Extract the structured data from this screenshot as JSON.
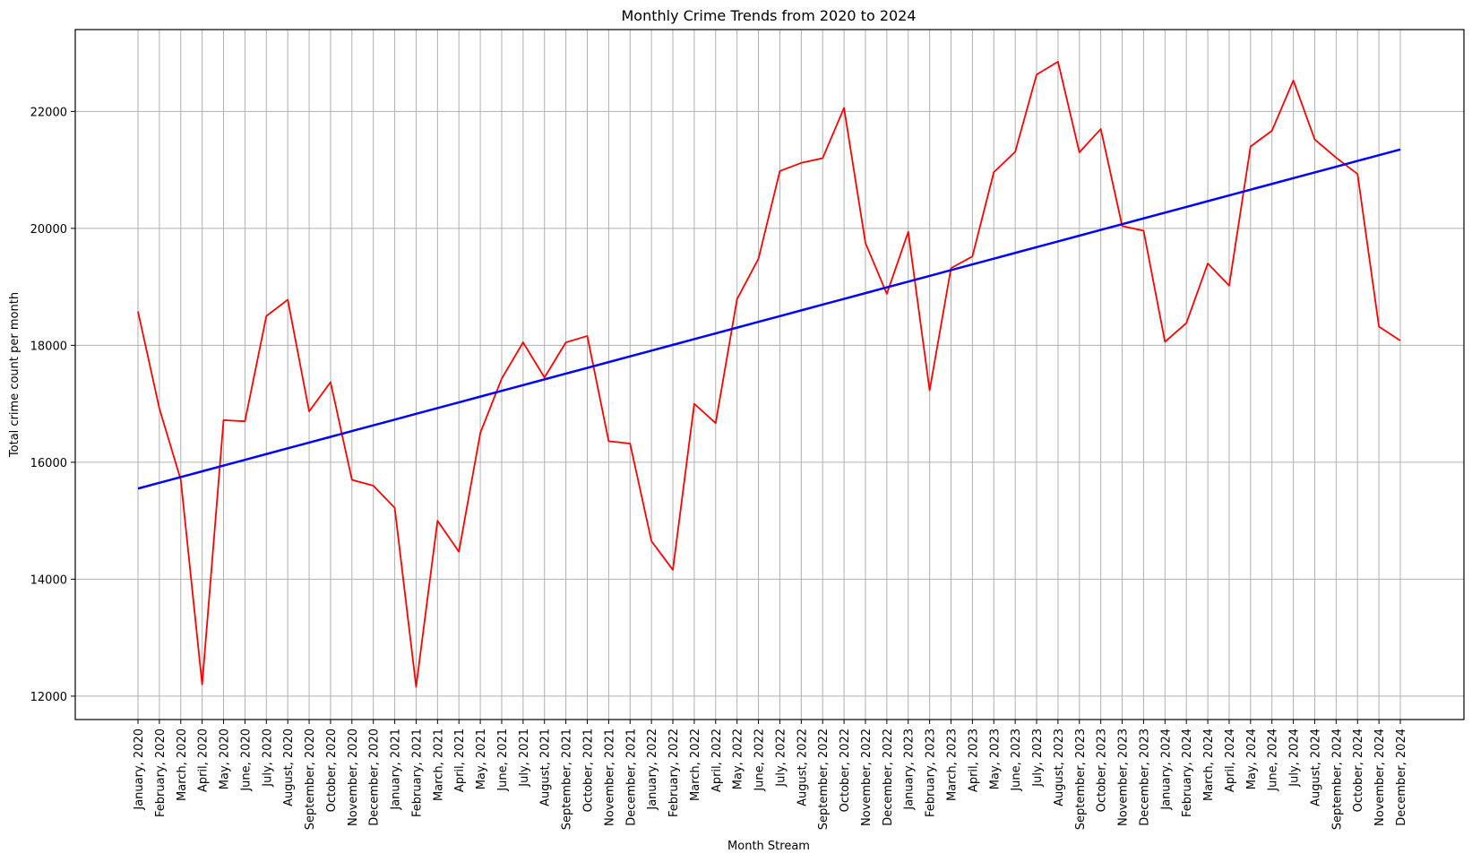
{
  "chart_data": {
    "type": "line",
    "title": "Monthly Crime Trends from 2020 to 2024",
    "xlabel": "Month Stream",
    "ylabel": "Total crime count per month",
    "ylim": [
      11600,
      23400
    ],
    "yticks": [
      12000,
      14000,
      16000,
      18000,
      20000,
      22000
    ],
    "grid": true,
    "categories": [
      "January, 2020",
      "February, 2020",
      "March, 2020",
      "April, 2020",
      "May, 2020",
      "June, 2020",
      "July, 2020",
      "August, 2020",
      "September, 2020",
      "October, 2020",
      "November, 2020",
      "December, 2020",
      "January, 2021",
      "February, 2021",
      "March, 2021",
      "April, 2021",
      "May, 2021",
      "June, 2021",
      "July, 2021",
      "August, 2021",
      "September, 2021",
      "October, 2021",
      "November, 2021",
      "December, 2021",
      "January, 2022",
      "February, 2022",
      "March, 2022",
      "April, 2022",
      "May, 2022",
      "June, 2022",
      "July, 2022",
      "August, 2022",
      "September, 2022",
      "October, 2022",
      "November, 2022",
      "December, 2022",
      "January, 2023",
      "February, 2023",
      "March, 2023",
      "April, 2023",
      "May, 2023",
      "June, 2023",
      "July, 2023",
      "August, 2023",
      "September, 2023",
      "October, 2023",
      "November, 2023",
      "December, 2023",
      "January, 2024",
      "February, 2024",
      "March, 2024",
      "April, 2024",
      "May, 2024",
      "June, 2024",
      "July, 2024",
      "August, 2024",
      "September, 2024",
      "October, 2024",
      "November, 2024",
      "December, 2024"
    ],
    "series": [
      {
        "color": "#ff0000",
        "values": [
          18580,
          16920,
          15700,
          12200,
          16720,
          16700,
          18500,
          18780,
          16870,
          17370,
          15700,
          15600,
          15220,
          12160,
          15000,
          14470,
          16500,
          17430,
          18050,
          17450,
          18050,
          18160,
          16360,
          16320,
          14650,
          14160,
          17000,
          16670,
          18790,
          19480,
          20980,
          21120,
          21200,
          22060,
          19750,
          18880,
          19940,
          17230,
          19320,
          19520,
          20960,
          21310,
          22630,
          22850,
          21300,
          21700,
          20040,
          19960,
          18060,
          18380,
          19400,
          19020,
          21400,
          21670,
          22530,
          21520,
          21210,
          20930,
          18320,
          18080
        ]
      },
      {
        "color": "#0000ff",
        "values_linear_from_to": [
          15550,
          21350
        ]
      }
    ]
  }
}
